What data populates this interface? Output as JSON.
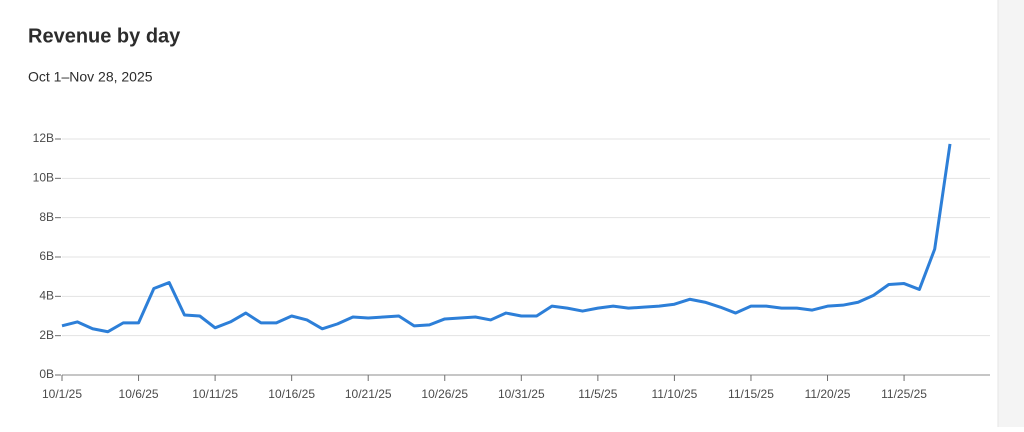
{
  "chart_data": {
    "type": "line",
    "title": "Revenue by day",
    "subtitle": "Oct 1–Nov 28, 2025",
    "x": [
      "10/1/25",
      "10/2/25",
      "10/3/25",
      "10/4/25",
      "10/5/25",
      "10/6/25",
      "10/7/25",
      "10/8/25",
      "10/9/25",
      "10/10/25",
      "10/11/25",
      "10/12/25",
      "10/13/25",
      "10/14/25",
      "10/15/25",
      "10/16/25",
      "10/17/25",
      "10/18/25",
      "10/19/25",
      "10/20/25",
      "10/21/25",
      "10/22/25",
      "10/23/25",
      "10/24/25",
      "10/25/25",
      "10/26/25",
      "10/27/25",
      "10/28/25",
      "10/29/25",
      "10/30/25",
      "10/31/25",
      "11/1/25",
      "11/2/25",
      "11/3/25",
      "11/4/25",
      "11/5/25",
      "11/6/25",
      "11/7/25",
      "11/8/25",
      "11/9/25",
      "11/10/25",
      "11/11/25",
      "11/12/25",
      "11/13/25",
      "11/14/25",
      "11/15/25",
      "11/16/25",
      "11/17/25",
      "11/18/25",
      "11/19/25",
      "11/20/25",
      "11/21/25",
      "11/22/25",
      "11/23/25",
      "11/24/25",
      "11/25/25",
      "11/26/25",
      "11/27/25",
      "11/28/25"
    ],
    "series": [
      {
        "color": "#2d7fd8",
        "values": [
          2.5,
          2.7,
          2.35,
          2.2,
          2.65,
          2.65,
          4.4,
          4.7,
          3.05,
          3.0,
          2.4,
          2.7,
          3.15,
          2.65,
          2.65,
          3.0,
          2.8,
          2.35,
          2.6,
          2.95,
          2.9,
          2.95,
          3.0,
          2.5,
          2.55,
          2.85,
          2.9,
          2.95,
          2.8,
          3.15,
          3.0,
          3.0,
          3.5,
          3.4,
          3.25,
          3.4,
          3.5,
          3.4,
          3.45,
          3.5,
          3.6,
          3.85,
          3.7,
          3.45,
          3.15,
          3.5,
          3.5,
          3.4,
          3.4,
          3.3,
          3.5,
          3.55,
          3.7,
          4.05,
          4.6,
          4.65,
          4.35,
          6.4,
          11.75
        ]
      }
    ],
    "xticks": [
      "10/1/25",
      "10/6/25",
      "10/11/25",
      "10/16/25",
      "10/21/25",
      "10/26/25",
      "10/31/25",
      "11/5/25",
      "11/10/25",
      "11/15/25",
      "11/20/25",
      "11/25/25"
    ],
    "ylim": [
      0,
      12
    ],
    "yticks": [
      {
        "value": 0,
        "label": "0B"
      },
      {
        "value": 2,
        "label": "2B"
      },
      {
        "value": 4,
        "label": "4B"
      },
      {
        "value": 6,
        "label": "6B"
      },
      {
        "value": 8,
        "label": "8B"
      },
      {
        "value": 10,
        "label": "10B"
      },
      {
        "value": 12,
        "label": "12B"
      }
    ],
    "grid": true
  }
}
